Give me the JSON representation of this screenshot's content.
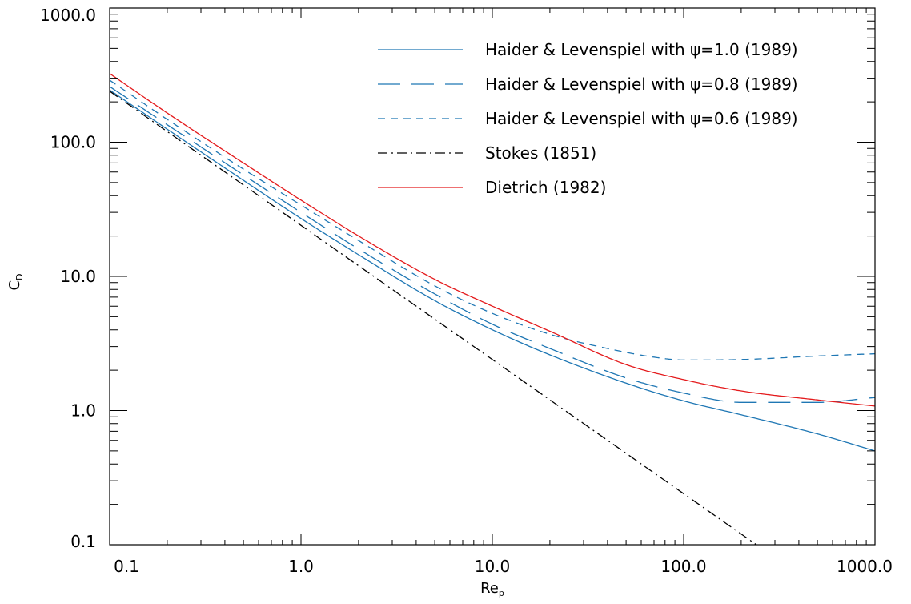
{
  "chart_data": {
    "type": "line",
    "title": "",
    "xlabel": "Re",
    "xlabel_sub": "p",
    "ylabel": "C",
    "ylabel_sub": "D",
    "x_scale": "log",
    "y_scale": "log",
    "xlim": [
      0.1,
      1000.0
    ],
    "ylim": [
      0.1,
      1000.0
    ],
    "x_ticks": [
      0.1,
      1.0,
      10.0,
      100.0,
      1000.0
    ],
    "x_tick_labels": [
      "0.1",
      "1.0",
      "10.0",
      "100.0",
      "1000.0"
    ],
    "y_ticks": [
      0.1,
      1.0,
      10.0,
      100.0,
      1000.0
    ],
    "y_tick_labels": [
      "0.1",
      "1.0",
      "10.0",
      "100.0",
      "1000.0"
    ],
    "grid": false,
    "legend_position": "top-right",
    "series": [
      {
        "name": "Haider & Levenspiel with ψ=1.0 (1989)",
        "color": "#1f77b4",
        "dash": "solid",
        "x": [
          0.1,
          0.2,
          0.5,
          1.0,
          2.0,
          5.0,
          10.0,
          20.0,
          50.0,
          100.0,
          200.0,
          500.0,
          1000.0
        ],
        "y": [
          245,
          125,
          52,
          27,
          14.5,
          6.6,
          4.0,
          2.6,
          1.6,
          1.18,
          0.93,
          0.67,
          0.5
        ]
      },
      {
        "name": "Haider & Levenspiel with ψ=0.8 (1989)",
        "color": "#1f77b4",
        "dash": "long",
        "x": [
          0.1,
          0.2,
          0.5,
          1.0,
          2.0,
          5.0,
          10.0,
          20.0,
          50.0,
          100.0,
          200.0,
          500.0,
          1000.0
        ],
        "y": [
          260,
          135,
          57,
          30,
          16,
          7.4,
          4.4,
          2.9,
          1.75,
          1.35,
          1.15,
          1.15,
          1.25
        ]
      },
      {
        "name": "Haider & Levenspiel with ψ=0.6 (1989)",
        "color": "#1f77b4",
        "dash": "short",
        "x": [
          0.1,
          0.2,
          0.5,
          1.0,
          2.0,
          5.0,
          10.0,
          20.0,
          40.0,
          70.0,
          100.0,
          200.0,
          500.0,
          1000.0
        ],
        "y": [
          290,
          148,
          63,
          34,
          18.5,
          8.5,
          5.3,
          3.7,
          2.9,
          2.5,
          2.38,
          2.4,
          2.55,
          2.65
        ]
      },
      {
        "name": "Stokes (1851)",
        "color": "#000000",
        "dash": "dashdot",
        "x": [
          0.1,
          240.0
        ],
        "y": [
          240,
          0.1
        ]
      },
      {
        "name": "Dietrich (1982)",
        "color": "#e41a1c",
        "dash": "solid",
        "x": [
          0.1,
          0.2,
          0.5,
          1.0,
          2.0,
          5.0,
          10.0,
          20.0,
          50.0,
          100.0,
          200.0,
          500.0,
          1000.0
        ],
        "y": [
          325,
          165,
          70,
          37,
          20,
          9.5,
          6.0,
          3.9,
          2.2,
          1.7,
          1.4,
          1.2,
          1.08
        ]
      }
    ]
  }
}
